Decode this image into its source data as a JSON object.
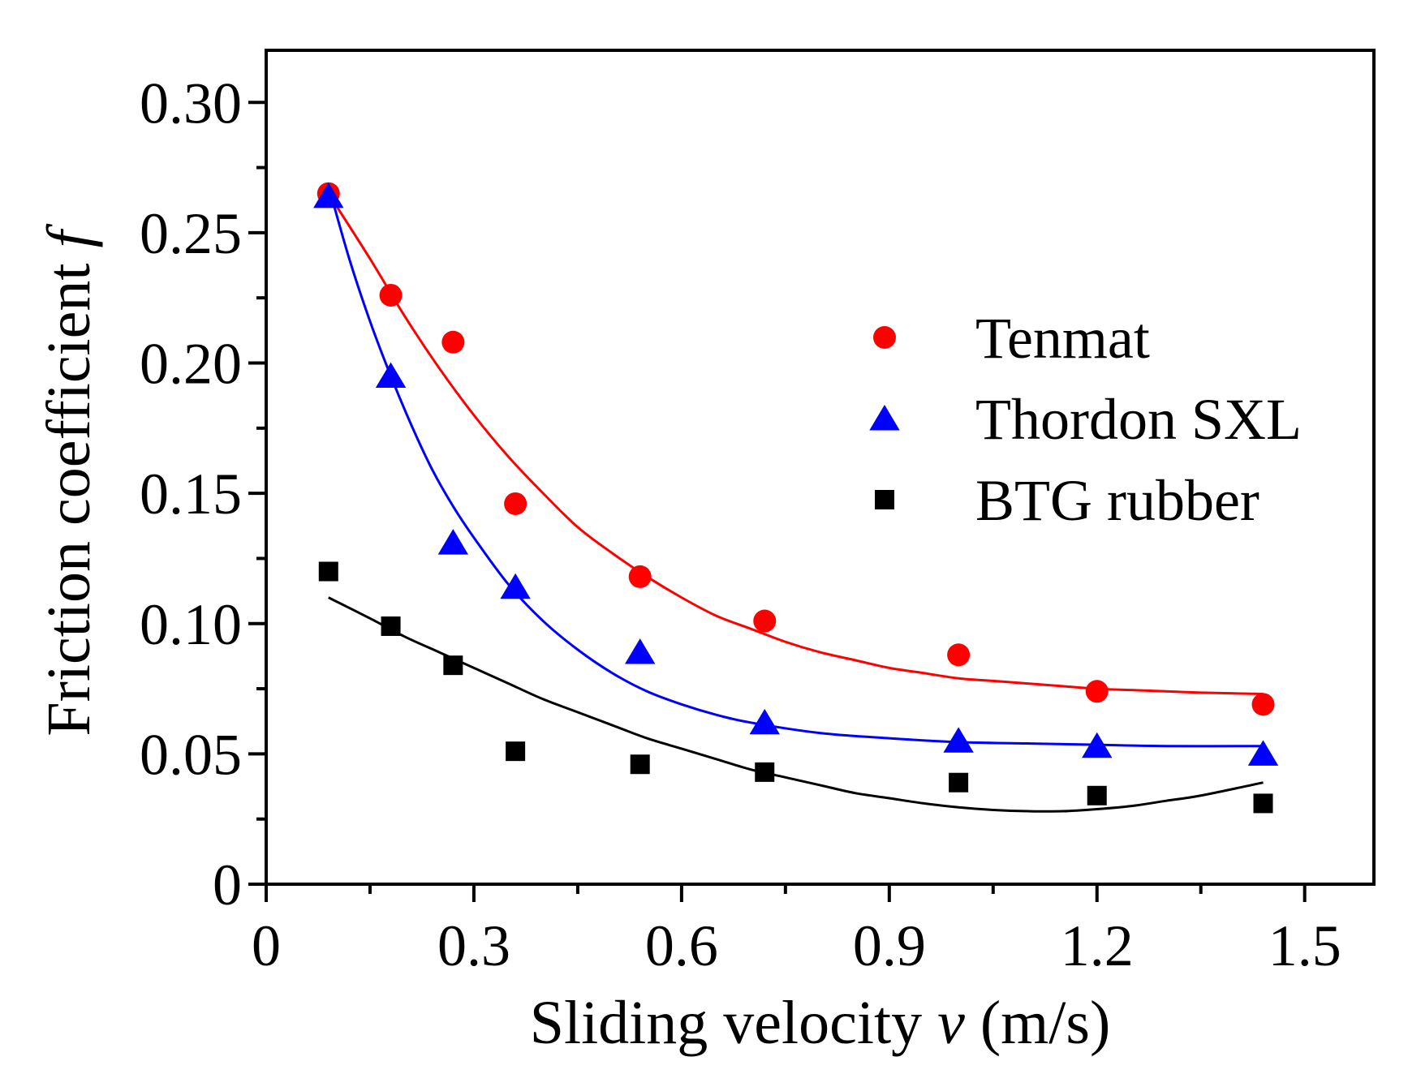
{
  "chart_data": {
    "type": "scatter",
    "xlabel": {
      "prefix": "Sliding velocity ",
      "var": "v",
      "suffix": " (m/s)"
    },
    "ylabel": {
      "prefix": "Friction coefficient  ",
      "var": "f"
    },
    "xlim": [
      0,
      1.6
    ],
    "ylim": [
      0,
      0.32
    ],
    "xticks": [
      0,
      0.3,
      0.6,
      0.9,
      1.2,
      1.5
    ],
    "xtick_labels": [
      "0",
      "0.3",
      "0.6",
      "0.9",
      "1.2",
      "1.5"
    ],
    "yticks": [
      0,
      0.05,
      0.1,
      0.15,
      0.2,
      0.25,
      0.3
    ],
    "ytick_labels": [
      "0",
      "0.05",
      "0.10",
      "0.15",
      "0.20",
      "0.25",
      "0.30"
    ],
    "grid": false,
    "legend_position": "right",
    "series": [
      {
        "name": "Tenmat",
        "marker": "circle",
        "color": "#ff0000",
        "x": [
          0.09,
          0.18,
          0.27,
          0.36,
          0.54,
          0.72,
          1.0,
          1.2,
          1.44
        ],
        "y": [
          0.265,
          0.226,
          0.208,
          0.146,
          0.118,
          0.101,
          0.088,
          0.074,
          0.069
        ],
        "fit": {
          "x": [
            0.09,
            0.15,
            0.2,
            0.25,
            0.3,
            0.35,
            0.4,
            0.45,
            0.5,
            0.55,
            0.6,
            0.65,
            0.7,
            0.75,
            0.8,
            0.85,
            0.9,
            0.95,
            1.0,
            1.05,
            1.1,
            1.15,
            1.2,
            1.25,
            1.3,
            1.35,
            1.44
          ],
          "y": [
            0.265,
            0.24,
            0.218,
            0.198,
            0.18,
            0.164,
            0.15,
            0.137,
            0.127,
            0.118,
            0.11,
            0.103,
            0.098,
            0.093,
            0.089,
            0.086,
            0.083,
            0.081,
            0.079,
            0.078,
            0.077,
            0.076,
            0.075,
            0.0745,
            0.074,
            0.0735,
            0.073
          ]
        }
      },
      {
        "name": "Thordon SXL",
        "marker": "triangle",
        "color": "#0000ff",
        "x": [
          0.09,
          0.18,
          0.27,
          0.36,
          0.54,
          0.72,
          1.0,
          1.2,
          1.44
        ],
        "y": [
          0.264,
          0.195,
          0.131,
          0.114,
          0.089,
          0.062,
          0.055,
          0.053,
          0.05
        ],
        "fit": {
          "x": [
            0.09,
            0.12,
            0.15,
            0.18,
            0.21,
            0.24,
            0.27,
            0.3,
            0.35,
            0.4,
            0.45,
            0.5,
            0.55,
            0.6,
            0.65,
            0.7,
            0.8,
            0.9,
            1.0,
            1.1,
            1.2,
            1.3,
            1.44
          ],
          "y": [
            0.268,
            0.24,
            0.216,
            0.195,
            0.176,
            0.159,
            0.145,
            0.133,
            0.115,
            0.101,
            0.09,
            0.081,
            0.074,
            0.069,
            0.065,
            0.062,
            0.058,
            0.056,
            0.0545,
            0.054,
            0.0535,
            0.053,
            0.053
          ]
        }
      },
      {
        "name": "BTG rubber",
        "marker": "square",
        "color": "#000000",
        "x": [
          0.09,
          0.18,
          0.27,
          0.36,
          0.54,
          0.72,
          1.0,
          1.2,
          1.44
        ],
        "y": [
          0.12,
          0.099,
          0.084,
          0.051,
          0.046,
          0.043,
          0.039,
          0.034,
          0.031
        ],
        "fit": {
          "x": [
            0.09,
            0.15,
            0.2,
            0.25,
            0.3,
            0.35,
            0.4,
            0.45,
            0.5,
            0.55,
            0.6,
            0.65,
            0.7,
            0.75,
            0.8,
            0.85,
            0.9,
            0.95,
            1.0,
            1.05,
            1.1,
            1.15,
            1.2,
            1.25,
            1.3,
            1.35,
            1.44
          ],
          "y": [
            0.11,
            0.102,
            0.095,
            0.089,
            0.083,
            0.077,
            0.071,
            0.066,
            0.061,
            0.056,
            0.052,
            0.048,
            0.044,
            0.041,
            0.038,
            0.035,
            0.033,
            0.031,
            0.0295,
            0.0285,
            0.028,
            0.028,
            0.0288,
            0.03,
            0.032,
            0.034,
            0.039
          ]
        }
      }
    ]
  }
}
